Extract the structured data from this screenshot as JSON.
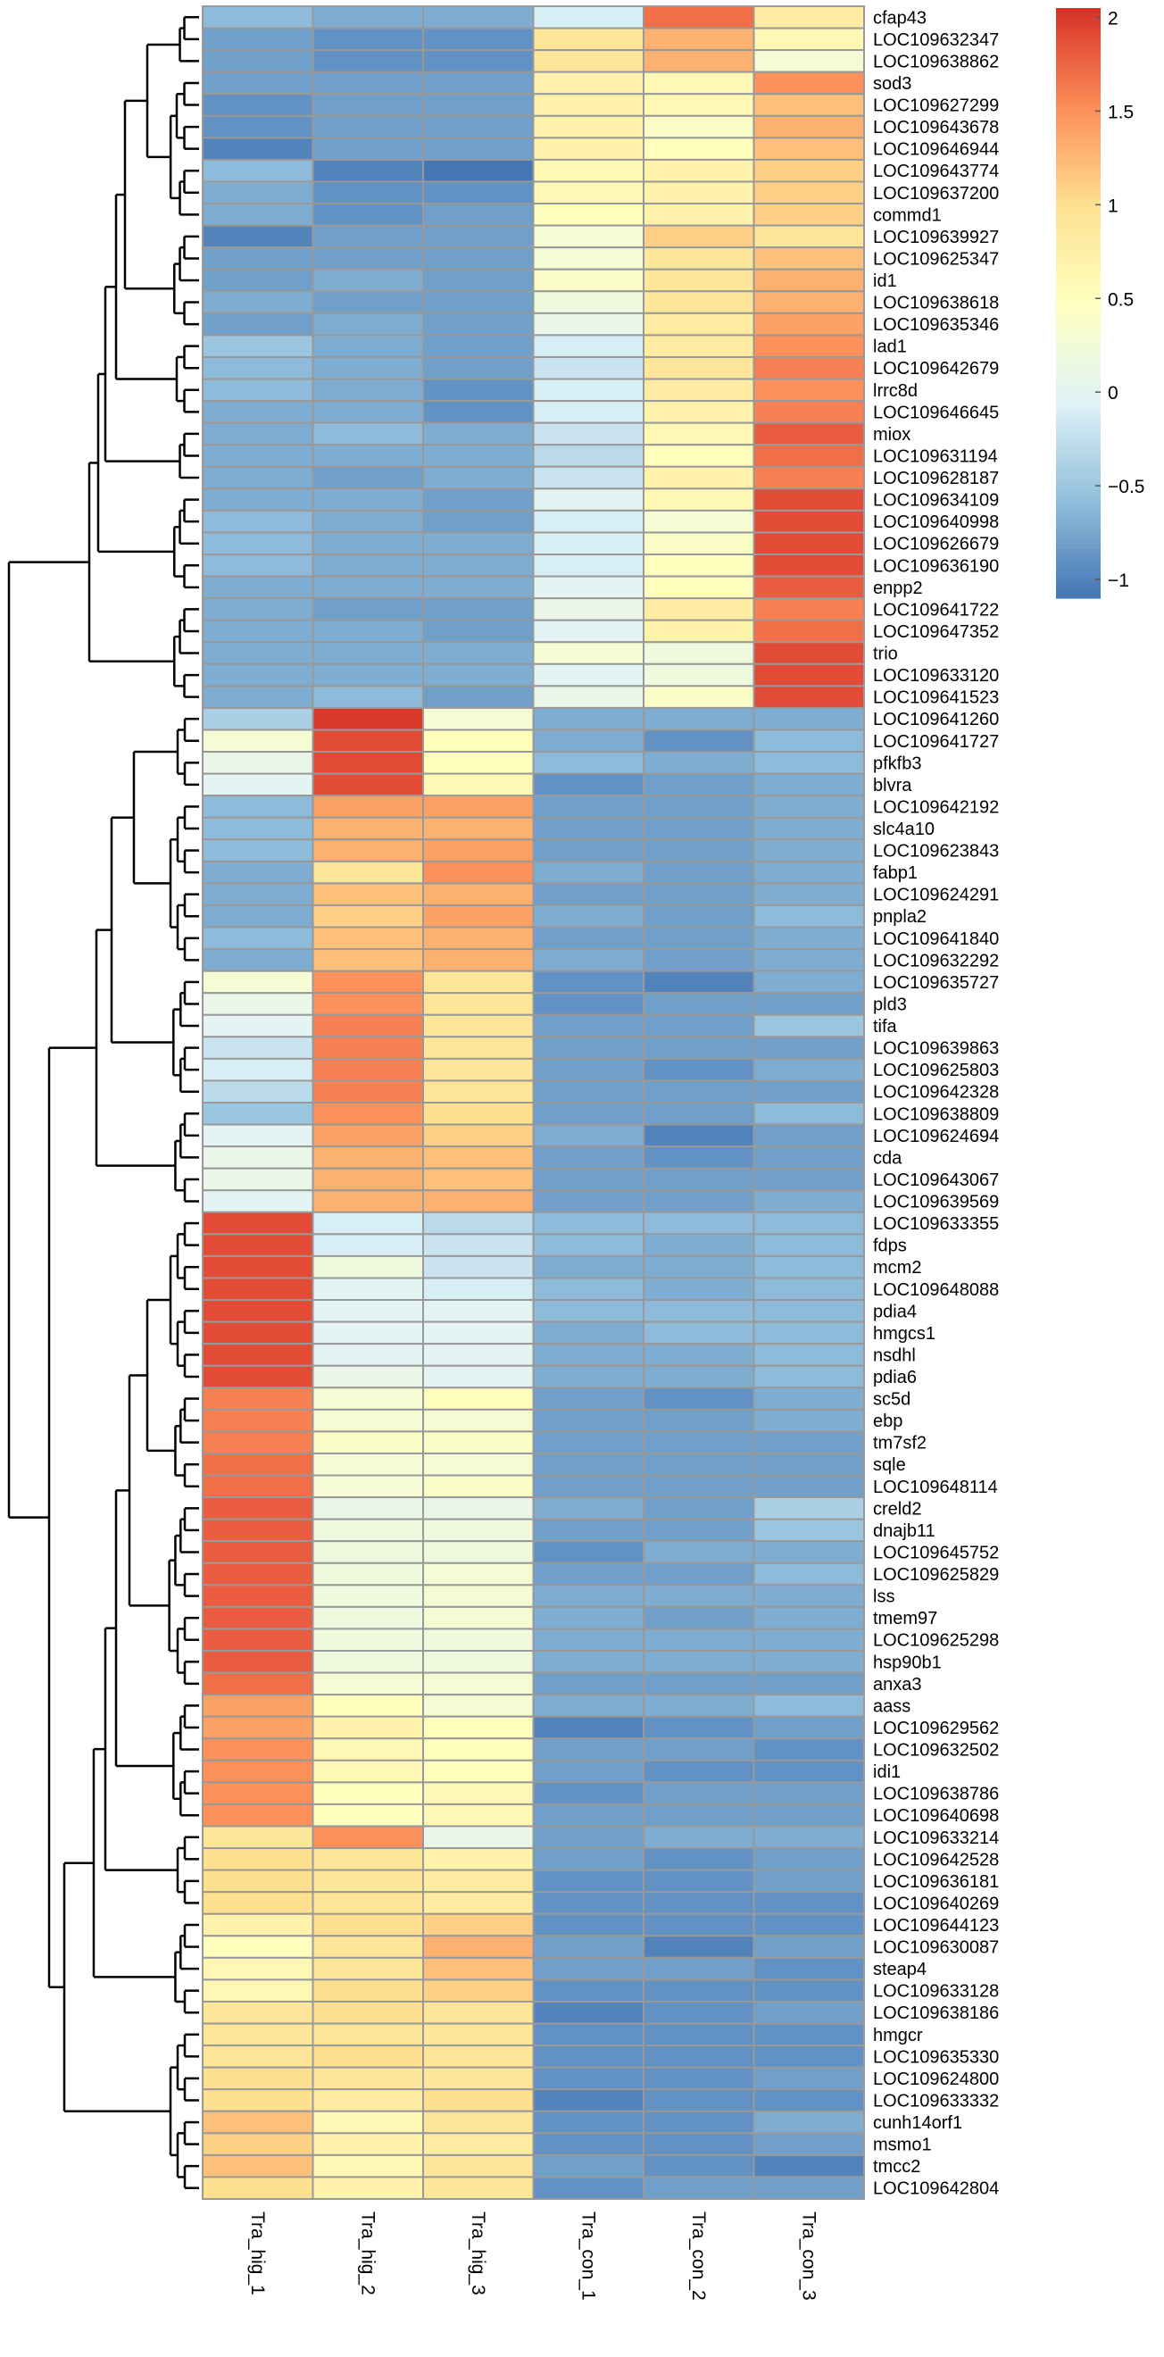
{
  "chart_data": {
    "type": "heatmap",
    "title": "",
    "columns": [
      "Tra_hig_1",
      "Tra_hig_2",
      "Tra_hig_3",
      "Tra_con_1",
      "Tra_con_2",
      "Tra_con_3"
    ],
    "rows": [
      {
        "gene": "cfap43",
        "values": [
          -0.6,
          -0.7,
          -0.7,
          -0.1,
          1.7,
          0.8
        ]
      },
      {
        "gene": "LOC109632347",
        "values": [
          -0.8,
          -0.9,
          -0.9,
          0.9,
          1.3,
          0.6
        ]
      },
      {
        "gene": "LOC109638862",
        "values": [
          -0.8,
          -0.9,
          -0.9,
          0.9,
          1.3,
          0.3
        ]
      },
      {
        "gene": "sod3",
        "values": [
          -0.8,
          -0.8,
          -0.8,
          0.7,
          0.6,
          1.5
        ]
      },
      {
        "gene": "LOC109627299",
        "values": [
          -0.9,
          -0.8,
          -0.8,
          0.7,
          0.6,
          1.2
        ]
      },
      {
        "gene": "LOC109643678",
        "values": [
          -0.9,
          -0.8,
          -0.8,
          0.7,
          0.4,
          1.3
        ]
      },
      {
        "gene": "LOC109646944",
        "values": [
          -1.0,
          -0.8,
          -0.8,
          0.7,
          0.5,
          1.2
        ]
      },
      {
        "gene": "LOC109643774",
        "values": [
          -0.6,
          -1.0,
          -1.1,
          0.6,
          0.7,
          1.1
        ]
      },
      {
        "gene": "LOC109637200",
        "values": [
          -0.7,
          -0.9,
          -0.9,
          0.6,
          0.7,
          1.1
        ]
      },
      {
        "gene": "commd1",
        "values": [
          -0.7,
          -0.9,
          -0.8,
          0.5,
          0.7,
          1.1
        ]
      },
      {
        "gene": "LOC109639927",
        "values": [
          -1.0,
          -0.8,
          -0.8,
          0.3,
          1.1,
          0.9
        ]
      },
      {
        "gene": "LOC109625347",
        "values": [
          -0.8,
          -0.8,
          -0.8,
          0.3,
          0.9,
          1.2
        ]
      },
      {
        "gene": "id1",
        "values": [
          -0.8,
          -0.7,
          -0.8,
          0.4,
          0.9,
          1.3
        ]
      },
      {
        "gene": "LOC109638618",
        "values": [
          -0.7,
          -0.8,
          -0.8,
          0.2,
          0.9,
          1.3
        ]
      },
      {
        "gene": "LOC109635346",
        "values": [
          -0.8,
          -0.7,
          -0.8,
          0.1,
          0.8,
          1.4
        ]
      },
      {
        "gene": "lad1",
        "values": [
          -0.5,
          -0.7,
          -0.8,
          -0.1,
          0.8,
          1.5
        ]
      },
      {
        "gene": "LOC109642679",
        "values": [
          -0.6,
          -0.7,
          -0.8,
          -0.2,
          0.9,
          1.6
        ]
      },
      {
        "gene": "lrrc8d",
        "values": [
          -0.6,
          -0.7,
          -0.9,
          -0.1,
          0.8,
          1.5
        ]
      },
      {
        "gene": "LOC109646645",
        "values": [
          -0.7,
          -0.7,
          -0.9,
          -0.1,
          0.7,
          1.6
        ]
      },
      {
        "gene": "miox",
        "values": [
          -0.7,
          -0.6,
          -0.7,
          -0.2,
          0.6,
          1.8
        ]
      },
      {
        "gene": "LOC109631194",
        "values": [
          -0.7,
          -0.7,
          -0.7,
          -0.3,
          0.5,
          1.7
        ]
      },
      {
        "gene": "LOC109628187",
        "values": [
          -0.7,
          -0.8,
          -0.7,
          -0.2,
          0.7,
          1.6
        ]
      },
      {
        "gene": "LOC109634109",
        "values": [
          -0.7,
          -0.7,
          -0.8,
          0.0,
          0.6,
          1.9
        ]
      },
      {
        "gene": "LOC109640998",
        "values": [
          -0.6,
          -0.7,
          -0.8,
          -0.1,
          0.3,
          1.9
        ]
      },
      {
        "gene": "LOC109626679",
        "values": [
          -0.6,
          -0.7,
          -0.7,
          -0.1,
          0.4,
          1.9
        ]
      },
      {
        "gene": "LOC109636190",
        "values": [
          -0.6,
          -0.7,
          -0.7,
          -0.1,
          0.5,
          1.9
        ]
      },
      {
        "gene": "enpp2",
        "values": [
          -0.7,
          -0.7,
          -0.7,
          0.0,
          0.5,
          1.8
        ]
      },
      {
        "gene": "LOC109641722",
        "values": [
          -0.7,
          -0.8,
          -0.8,
          0.1,
          0.8,
          1.6
        ]
      },
      {
        "gene": "LOC109647352",
        "values": [
          -0.7,
          -0.7,
          -0.8,
          0.0,
          0.7,
          1.7
        ]
      },
      {
        "gene": "trio",
        "values": [
          -0.7,
          -0.7,
          -0.7,
          0.3,
          0.2,
          1.9
        ]
      },
      {
        "gene": "LOC109633120",
        "values": [
          -0.7,
          -0.7,
          -0.7,
          0.0,
          0.2,
          1.9
        ]
      },
      {
        "gene": "LOC109641523",
        "values": [
          -0.7,
          -0.6,
          -0.8,
          0.1,
          0.4,
          1.9
        ]
      },
      {
        "gene": "LOC109641260",
        "values": [
          -0.4,
          2.0,
          0.3,
          -0.7,
          -0.7,
          -0.7
        ]
      },
      {
        "gene": "LOC109641727",
        "values": [
          0.3,
          1.9,
          0.5,
          -0.7,
          -0.9,
          -0.6
        ]
      },
      {
        "gene": "pfkfb3",
        "values": [
          0.1,
          1.9,
          0.5,
          -0.6,
          -0.7,
          -0.6
        ]
      },
      {
        "gene": "blvra",
        "values": [
          0.0,
          1.9,
          0.6,
          -0.9,
          -0.8,
          -0.7
        ]
      },
      {
        "gene": "LOC109642192",
        "values": [
          -0.6,
          1.4,
          1.4,
          -0.8,
          -0.8,
          -0.7
        ]
      },
      {
        "gene": "slc4a10",
        "values": [
          -0.6,
          1.3,
          1.3,
          -0.8,
          -0.8,
          -0.7
        ]
      },
      {
        "gene": "LOC109623843",
        "values": [
          -0.6,
          1.3,
          1.4,
          -0.8,
          -0.8,
          -0.7
        ]
      },
      {
        "gene": "fabp1",
        "values": [
          -0.7,
          0.9,
          1.5,
          -0.7,
          -0.8,
          -0.7
        ]
      },
      {
        "gene": "LOC109624291",
        "values": [
          -0.7,
          1.2,
          1.3,
          -0.8,
          -0.8,
          -0.7
        ]
      },
      {
        "gene": "pnpla2",
        "values": [
          -0.7,
          1.1,
          1.4,
          -0.7,
          -0.8,
          -0.6
        ]
      },
      {
        "gene": "LOC109641840",
        "values": [
          -0.6,
          1.2,
          1.3,
          -0.8,
          -0.8,
          -0.7
        ]
      },
      {
        "gene": "LOC109632292",
        "values": [
          -0.7,
          1.2,
          1.3,
          -0.7,
          -0.8,
          -0.7
        ]
      },
      {
        "gene": "LOC109635727",
        "values": [
          0.3,
          1.5,
          0.9,
          -0.9,
          -1.0,
          -0.7
        ]
      },
      {
        "gene": "pld3",
        "values": [
          0.1,
          1.5,
          0.9,
          -0.9,
          -0.8,
          -0.8
        ]
      },
      {
        "gene": "tifa",
        "values": [
          0.0,
          1.6,
          0.9,
          -0.8,
          -0.8,
          -0.5
        ]
      },
      {
        "gene": "LOC109639863",
        "values": [
          -0.2,
          1.6,
          0.9,
          -0.8,
          -0.8,
          -0.8
        ]
      },
      {
        "gene": "LOC109625803",
        "values": [
          -0.1,
          1.6,
          0.9,
          -0.8,
          -0.9,
          -0.7
        ]
      },
      {
        "gene": "LOC109642328",
        "values": [
          -0.3,
          1.6,
          0.9,
          -0.8,
          -0.8,
          -0.8
        ]
      },
      {
        "gene": "LOC109638809",
        "values": [
          -0.5,
          1.5,
          1.0,
          -0.8,
          -0.8,
          -0.6
        ]
      },
      {
        "gene": "LOC109624694",
        "values": [
          0.0,
          1.4,
          1.1,
          -0.7,
          -1.0,
          -0.8
        ]
      },
      {
        "gene": "cda",
        "values": [
          0.1,
          1.3,
          1.2,
          -0.8,
          -0.9,
          -0.8
        ]
      },
      {
        "gene": "LOC109643067",
        "values": [
          0.1,
          1.3,
          1.2,
          -0.8,
          -0.8,
          -0.8
        ]
      },
      {
        "gene": "LOC109639569",
        "values": [
          0.0,
          1.3,
          1.3,
          -0.8,
          -0.8,
          -0.7
        ]
      },
      {
        "gene": "LOC109633355",
        "values": [
          1.9,
          -0.1,
          -0.3,
          -0.6,
          -0.6,
          -0.6
        ]
      },
      {
        "gene": "fdps",
        "values": [
          1.9,
          -0.1,
          -0.2,
          -0.6,
          -0.7,
          -0.6
        ]
      },
      {
        "gene": "mcm2",
        "values": [
          1.9,
          0.2,
          -0.2,
          -0.7,
          -0.7,
          -0.6
        ]
      },
      {
        "gene": "LOC109648088",
        "values": [
          1.9,
          0.0,
          -0.1,
          -0.6,
          -0.7,
          -0.6
        ]
      },
      {
        "gene": "pdia4",
        "values": [
          1.9,
          0.0,
          0.0,
          -0.6,
          -0.6,
          -0.6
        ]
      },
      {
        "gene": "hmgcs1",
        "values": [
          1.9,
          0.0,
          0.0,
          -0.7,
          -0.6,
          -0.6
        ]
      },
      {
        "gene": "nsdhl",
        "values": [
          1.9,
          0.0,
          0.0,
          -0.7,
          -0.7,
          -0.6
        ]
      },
      {
        "gene": "pdia6",
        "values": [
          1.9,
          0.1,
          0.0,
          -0.7,
          -0.7,
          -0.6
        ]
      },
      {
        "gene": "sc5d",
        "values": [
          1.6,
          0.3,
          0.5,
          -0.8,
          -0.9,
          -0.7
        ]
      },
      {
        "gene": "ebp",
        "values": [
          1.6,
          0.3,
          0.3,
          -0.8,
          -0.8,
          -0.7
        ]
      },
      {
        "gene": "tm7sf2",
        "values": [
          1.6,
          0.4,
          0.4,
          -0.8,
          -0.8,
          -0.8
        ]
      },
      {
        "gene": "sqle",
        "values": [
          1.7,
          0.3,
          0.3,
          -0.8,
          -0.8,
          -0.8
        ]
      },
      {
        "gene": "LOC109648114",
        "values": [
          1.7,
          0.3,
          0.4,
          -0.8,
          -0.8,
          -0.8
        ]
      },
      {
        "gene": "creld2",
        "values": [
          1.8,
          0.1,
          0.1,
          -0.7,
          -0.8,
          -0.4
        ]
      },
      {
        "gene": "dnajb11",
        "values": [
          1.8,
          0.2,
          0.2,
          -0.8,
          -0.8,
          -0.5
        ]
      },
      {
        "gene": "LOC109645752",
        "values": [
          1.8,
          0.2,
          0.2,
          -0.9,
          -0.7,
          -0.7
        ]
      },
      {
        "gene": "LOC109625829",
        "values": [
          1.8,
          0.2,
          0.3,
          -0.8,
          -0.8,
          -0.6
        ]
      },
      {
        "gene": "lss",
        "values": [
          1.8,
          0.2,
          0.3,
          -0.7,
          -0.7,
          -0.7
        ]
      },
      {
        "gene": "tmem97",
        "values": [
          1.8,
          0.2,
          0.3,
          -0.7,
          -0.8,
          -0.7
        ]
      },
      {
        "gene": "LOC109625298",
        "values": [
          1.8,
          0.2,
          0.2,
          -0.7,
          -0.7,
          -0.7
        ]
      },
      {
        "gene": "hsp90b1",
        "values": [
          1.8,
          0.2,
          0.2,
          -0.7,
          -0.7,
          -0.7
        ]
      },
      {
        "gene": "anxa3",
        "values": [
          1.7,
          0.3,
          0.3,
          -0.8,
          -0.8,
          -0.8
        ]
      },
      {
        "gene": "aass",
        "values": [
          1.4,
          0.5,
          0.3,
          -0.7,
          -0.7,
          -0.6
        ]
      },
      {
        "gene": "LOC109629562",
        "values": [
          1.4,
          0.7,
          0.5,
          -1.0,
          -0.9,
          -0.8
        ]
      },
      {
        "gene": "LOC109632502",
        "values": [
          1.5,
          0.6,
          0.5,
          -0.8,
          -0.8,
          -0.9
        ]
      },
      {
        "gene": "idi1",
        "values": [
          1.5,
          0.6,
          0.5,
          -0.8,
          -0.9,
          -0.9
        ]
      },
      {
        "gene": "LOC109638786",
        "values": [
          1.5,
          0.5,
          0.6,
          -0.9,
          -0.8,
          -0.8
        ]
      },
      {
        "gene": "LOC109640698",
        "values": [
          1.5,
          0.5,
          0.6,
          -0.8,
          -0.8,
          -0.8
        ]
      },
      {
        "gene": "LOC109633214",
        "values": [
          0.9,
          1.5,
          0.1,
          -0.8,
          -0.7,
          -0.7
        ]
      },
      {
        "gene": "LOC109642528",
        "values": [
          1.0,
          0.9,
          0.7,
          -0.8,
          -0.9,
          -0.8
        ]
      },
      {
        "gene": "LOC109636181",
        "values": [
          1.0,
          0.9,
          0.8,
          -0.9,
          -0.9,
          -0.8
        ]
      },
      {
        "gene": "LOC109640269",
        "values": [
          1.0,
          0.9,
          0.8,
          -0.9,
          -0.9,
          -0.9
        ]
      },
      {
        "gene": "LOC109644123",
        "values": [
          0.7,
          1.0,
          1.1,
          -0.9,
          -0.9,
          -0.9
        ]
      },
      {
        "gene": "LOC109630087",
        "values": [
          0.5,
          0.9,
          1.3,
          -0.8,
          -1.0,
          -0.8
        ]
      },
      {
        "gene": "steap4",
        "values": [
          0.6,
          0.9,
          1.2,
          -0.8,
          -0.8,
          -0.9
        ]
      },
      {
        "gene": "LOC109633128",
        "values": [
          0.6,
          1.0,
          1.1,
          -0.9,
          -0.9,
          -0.9
        ]
      },
      {
        "gene": "LOC109638186",
        "values": [
          0.9,
          1.0,
          0.9,
          -1.0,
          -0.9,
          -0.8
        ]
      },
      {
        "gene": "hmgcr",
        "values": [
          0.9,
          0.9,
          0.9,
          -0.9,
          -0.9,
          -0.9
        ]
      },
      {
        "gene": "LOC109635330",
        "values": [
          0.9,
          1.0,
          0.9,
          -0.9,
          -0.9,
          -0.9
        ]
      },
      {
        "gene": "LOC109624800",
        "values": [
          1.0,
          0.9,
          0.9,
          -0.9,
          -0.9,
          -0.8
        ]
      },
      {
        "gene": "LOC109633332",
        "values": [
          1.0,
          0.8,
          1.0,
          -1.0,
          -0.9,
          -0.9
        ]
      },
      {
        "gene": "cunh14orf1",
        "values": [
          1.2,
          0.6,
          0.9,
          -0.9,
          -0.9,
          -0.7
        ]
      },
      {
        "gene": "msmo1",
        "values": [
          1.1,
          0.7,
          0.8,
          -0.9,
          -0.9,
          -0.8
        ]
      },
      {
        "gene": "tmcc2",
        "values": [
          1.2,
          0.6,
          0.9,
          -0.8,
          -0.9,
          -1.0
        ]
      },
      {
        "gene": "LOC109642804",
        "values": [
          1.0,
          0.7,
          0.9,
          -0.9,
          -0.8,
          -0.8
        ]
      }
    ],
    "legend": {
      "ticks": [
        "2",
        "1.5",
        "1",
        "0.5",
        "0",
        "−0.5",
        "−1"
      ],
      "range": [
        -1.1,
        2.05
      ],
      "colors": [
        "#4575b4",
        "#91bfdb",
        "#e0f3f8",
        "#ffffbf",
        "#fee090",
        "#fc8d59",
        "#d73027"
      ]
    },
    "gaps_after_rows": [
      31,
      54
    ],
    "row_cluster_groups": [
      [
        [
          0,
          2
        ],
        [
          3,
          9
        ],
        [
          10,
          14
        ],
        [
          15,
          18
        ],
        [
          19,
          21
        ],
        [
          22,
          26
        ],
        [
          27,
          31
        ]
      ],
      [
        [
          32,
          35
        ],
        [
          36,
          43
        ],
        [
          44,
          49
        ],
        [
          50,
          54
        ]
      ],
      [
        [
          55,
          62
        ],
        [
          63,
          67
        ],
        [
          68,
          76
        ],
        [
          77,
          82
        ],
        [
          83,
          86
        ],
        [
          87,
          91
        ],
        [
          92,
          99
        ]
      ]
    ]
  }
}
